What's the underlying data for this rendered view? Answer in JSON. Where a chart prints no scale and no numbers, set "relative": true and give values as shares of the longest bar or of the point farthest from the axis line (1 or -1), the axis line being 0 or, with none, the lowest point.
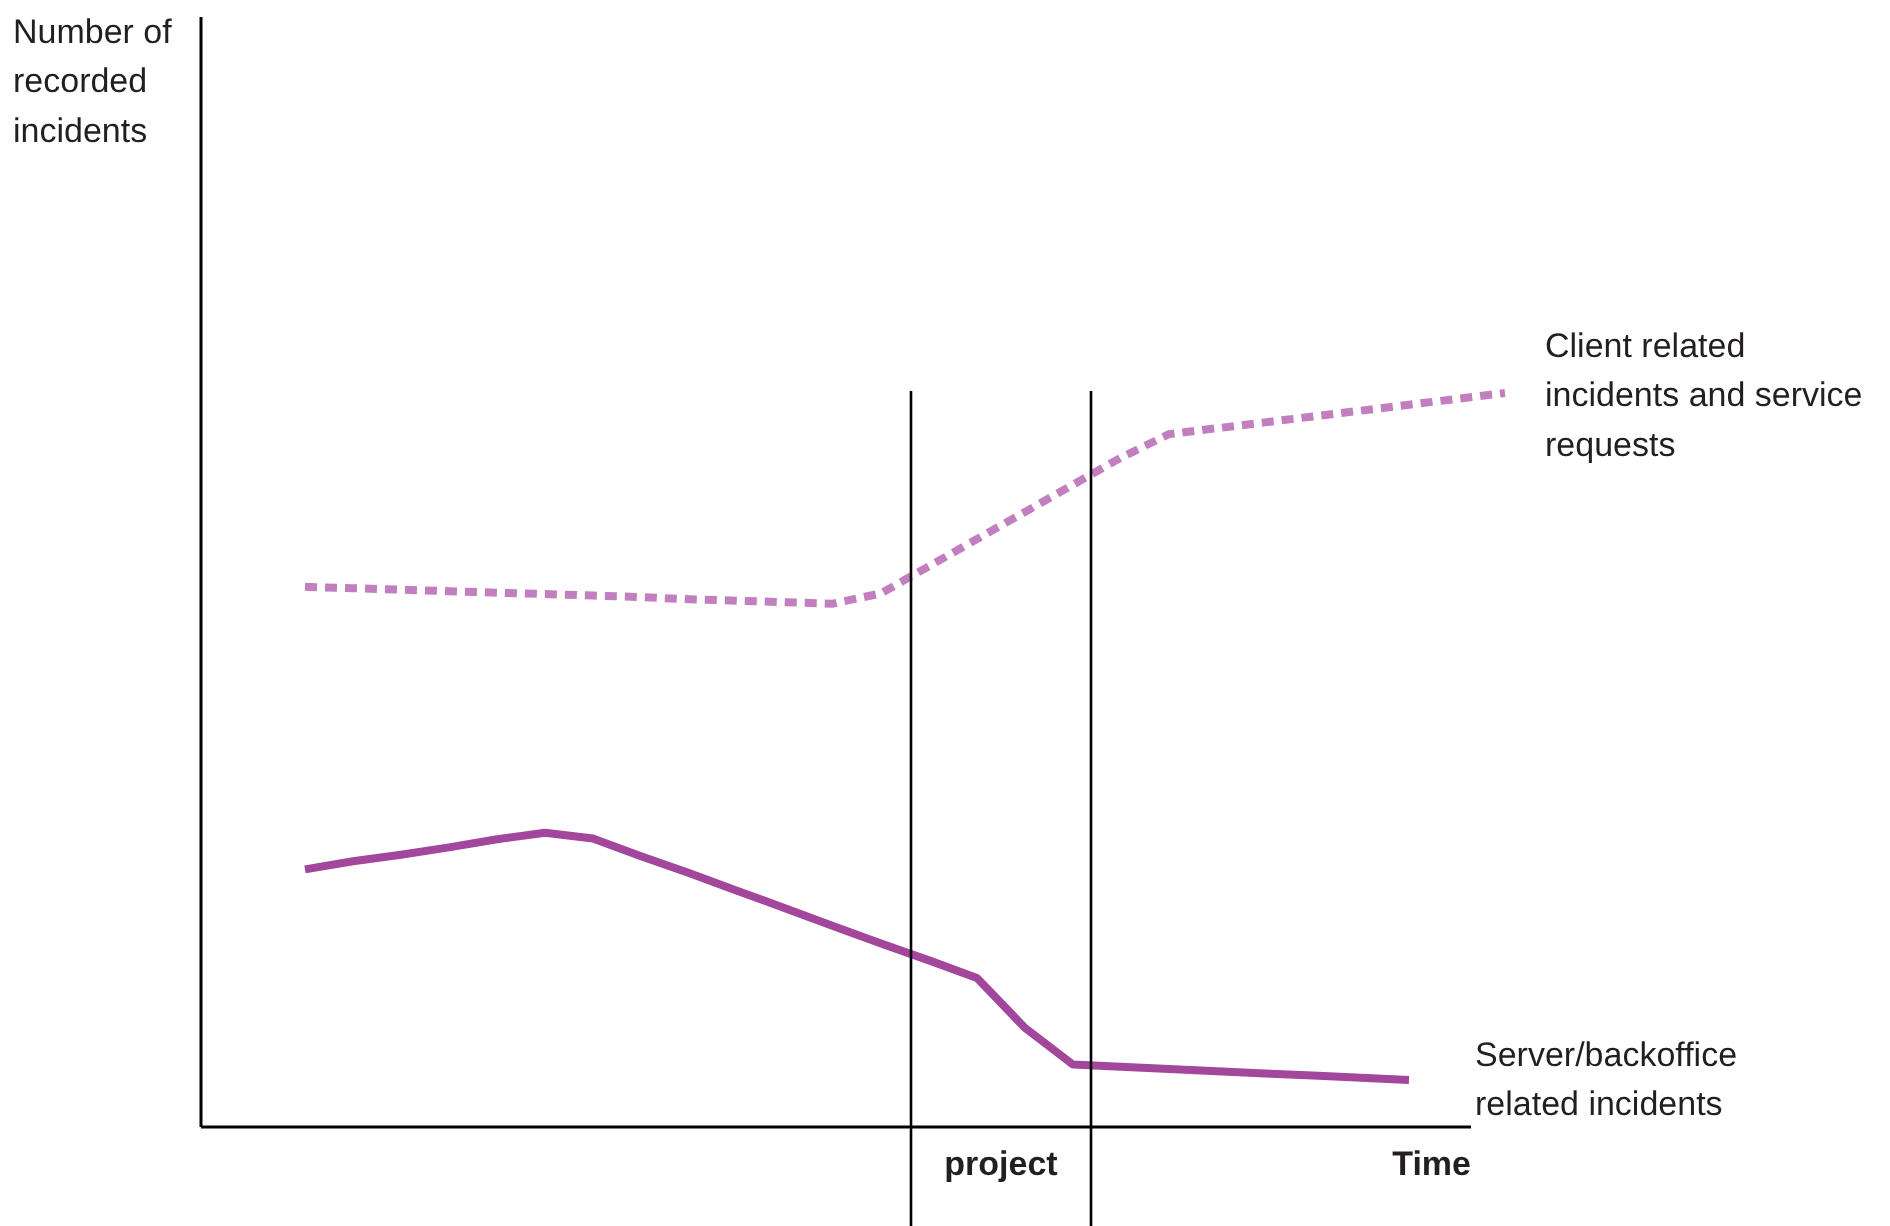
{
  "chart_data": {
    "type": "line",
    "relative": true,
    "xlabel": "Time",
    "annotations": [
      "Number of recorded incidents",
      "project"
    ],
    "grid": false,
    "legend": false,
    "categories": [
      null,
      null,
      null,
      null,
      null,
      null,
      null,
      null,
      null,
      null,
      null,
      null,
      null,
      null,
      null,
      null,
      null,
      null,
      null,
      null,
      null,
      null,
      null,
      null,
      null,
      null
    ],
    "series": [
      {
        "name": "Client related incidents and service requests",
        "color": "#c27fbf",
        "line_style": "dotted",
        "values": [
          0.736,
          0.734,
          0.732,
          0.73,
          0.728,
          0.726,
          0.724,
          0.722,
          0.719,
          0.717,
          0.715,
          0.713,
          0.727,
          0.764,
          0.801,
          0.838,
          0.875,
          0.912,
          0.944,
          0.952,
          0.96,
          0.968,
          0.976,
          0.984,
          0.992,
          1.0
        ]
      },
      {
        "name": "Server/backoffice related incidents",
        "color": "#a2479b",
        "line_style": "solid",
        "values": [
          0.351,
          0.362,
          0.371,
          0.381,
          0.392,
          0.401,
          0.393,
          0.369,
          0.346,
          0.322,
          0.298,
          0.274,
          0.25,
          0.227,
          0.203,
          0.135,
          0.085,
          0.082,
          0.079,
          0.076,
          0.073,
          0.07,
          0.067,
          0.064,
          null,
          null
        ]
      }
    ]
  }
}
